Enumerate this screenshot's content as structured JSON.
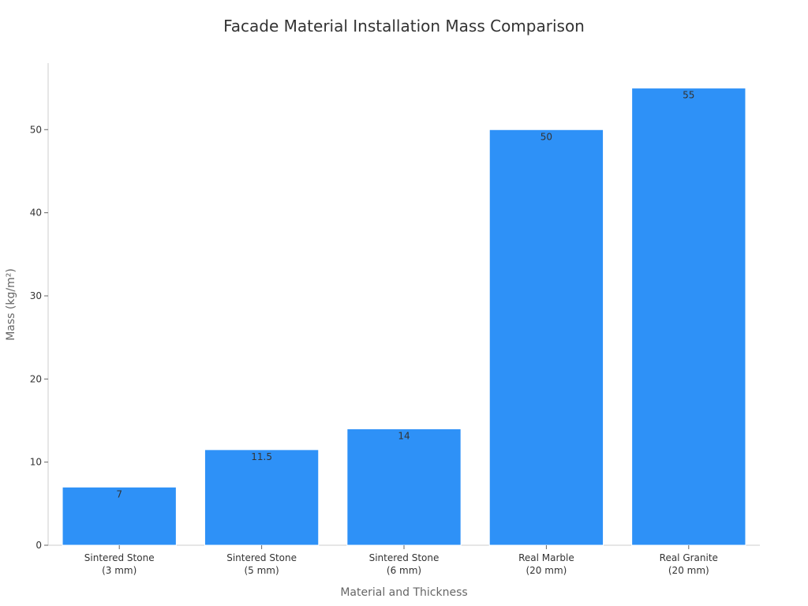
{
  "chart_data": {
    "type": "bar",
    "title": "Facade Material Installation Mass Comparison",
    "xlabel": "Material and Thickness",
    "ylabel": "Mass (kg/m²)",
    "categories": [
      [
        "Sintered Stone",
        "(3 mm)"
      ],
      [
        "Sintered Stone",
        "(5 mm)"
      ],
      [
        "Sintered Stone",
        "(6 mm)"
      ],
      [
        "Real Marble",
        "(20 mm)"
      ],
      [
        "Real Granite",
        "(20 mm)"
      ]
    ],
    "values": [
      7,
      11.5,
      14,
      50,
      55
    ],
    "data_labels": [
      "7",
      "11.5",
      "14",
      "50",
      "55"
    ],
    "ylim": [
      0,
      58
    ],
    "yticks": [
      0,
      10,
      20,
      30,
      40,
      50
    ],
    "bar_color": "#2e91f7",
    "grid": false,
    "legend": "none"
  }
}
